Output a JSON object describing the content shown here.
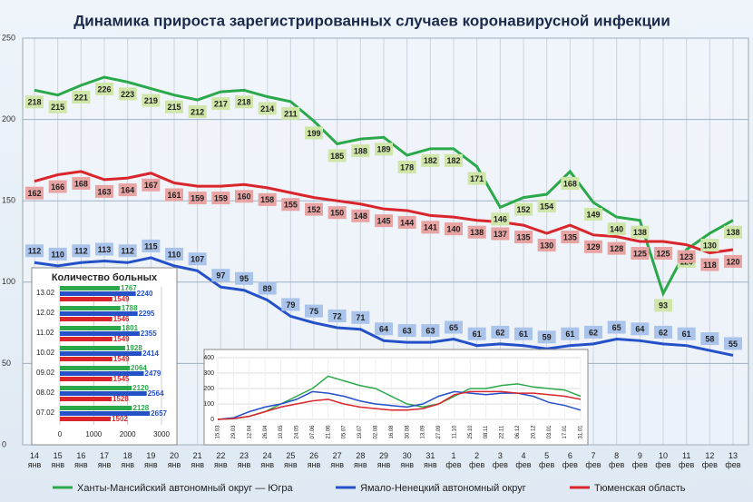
{
  "chart_data": [
    {
      "type": "line",
      "title": "Динамика прироста зарегистрированных случаев коронавирусной инфекции",
      "categories": [
        "14 янв",
        "15 янв",
        "16 янв",
        "17 янв",
        "18 янв",
        "19 янв",
        "20 янв",
        "21 янв",
        "22 янв",
        "23 янв",
        "24 янв",
        "25 янв",
        "26 янв",
        "27 янв",
        "28 янв",
        "29 янв",
        "30 янв",
        "31 янв",
        "1 фев",
        "2 фев",
        "3 фев",
        "4 фев",
        "5 фев",
        "6 фев",
        "7 фев",
        "8 фев",
        "9 фев",
        "10 фев",
        "11 фев",
        "12 фев",
        "13 фев"
      ],
      "series": [
        {
          "name": "Ханты-Мансийский автономный округ — Югра",
          "color": "#2aa84a",
          "label_color": "#cfe6a8",
          "values": [
            218,
            215,
            221,
            226,
            223,
            219,
            215,
            212,
            217,
            218,
            214,
            211,
            199,
            185,
            188,
            189,
            178,
            182,
            182,
            171,
            146,
            152,
            154,
            168,
            149,
            140,
            138,
            93,
            120,
            130,
            138
          ]
        },
        {
          "name": "Ямало-Ненецкий автономный округ",
          "color": "#2450c8",
          "label_color": "#a9c3ea",
          "values": [
            112,
            110,
            112,
            113,
            112,
            115,
            110,
            107,
            97,
            95,
            89,
            79,
            75,
            72,
            71,
            64,
            63,
            63,
            65,
            61,
            62,
            61,
            59,
            61,
            62,
            65,
            64,
            62,
            61,
            58,
            55
          ]
        },
        {
          "name": "Тюменская область",
          "color": "#d8262c",
          "label_color": "#e8a3a3",
          "values": [
            162,
            166,
            168,
            163,
            164,
            167,
            161,
            159,
            159,
            160,
            158,
            155,
            152,
            150,
            148,
            145,
            144,
            141,
            140,
            138,
            137,
            135,
            130,
            135,
            129,
            128,
            125,
            125,
            123,
            118,
            120
          ]
        }
      ],
      "ylim": [
        0,
        250
      ],
      "yticks": [
        0,
        50,
        100,
        150,
        200,
        250
      ],
      "grid": true
    },
    {
      "type": "hbar",
      "title": "Количество больных",
      "categories": [
        "13.02",
        "12.02",
        "11.02",
        "10.02",
        "09.02",
        "08.02",
        "07.02"
      ],
      "series": [
        {
          "color": "#2aa84a",
          "values": [
            1767,
            1788,
            1801,
            1928,
            2064,
            2120,
            2128
          ]
        },
        {
          "color": "#2450c8",
          "values": [
            2240,
            2295,
            2355,
            2414,
            2479,
            2564,
            2657
          ]
        },
        {
          "color": "#d8262c",
          "values": [
            1549,
            1546,
            1549,
            1549,
            1545,
            1528,
            1502
          ]
        }
      ],
      "xlim": [
        0,
        3000
      ],
      "xticks": [
        0,
        1000,
        2000,
        3000
      ]
    },
    {
      "type": "line",
      "categories": [
        "15.03",
        "29.03",
        "12.04",
        "26.04",
        "10.05",
        "24.05",
        "07.06",
        "21.06",
        "05.07",
        "19.07",
        "02.08",
        "16.08",
        "30.08",
        "13.09",
        "27.09",
        "11.10",
        "25.10",
        "08.11",
        "22.11",
        "06.12",
        "20.12",
        "03.01",
        "17.01",
        "31.01"
      ],
      "series": [
        {
          "color": "#2aa84a",
          "values": [
            0,
            5,
            20,
            50,
            100,
            150,
            200,
            280,
            250,
            220,
            200,
            150,
            100,
            80,
            100,
            150,
            200,
            200,
            220,
            230,
            210,
            200,
            190,
            150
          ]
        },
        {
          "color": "#2450c8",
          "values": [
            0,
            10,
            50,
            80,
            100,
            130,
            180,
            170,
            150,
            120,
            100,
            90,
            80,
            100,
            150,
            180,
            170,
            160,
            170,
            170,
            150,
            110,
            90,
            60
          ]
        },
        {
          "color": "#d8262c",
          "values": [
            0,
            5,
            20,
            50,
            80,
            100,
            120,
            130,
            100,
            80,
            70,
            60,
            60,
            70,
            100,
            160,
            180,
            180,
            180,
            170,
            170,
            160,
            150,
            130
          ]
        }
      ],
      "ylim": [
        0,
        400
      ],
      "yticks": [
        0,
        100,
        200,
        300,
        400
      ],
      "grid": true
    }
  ]
}
